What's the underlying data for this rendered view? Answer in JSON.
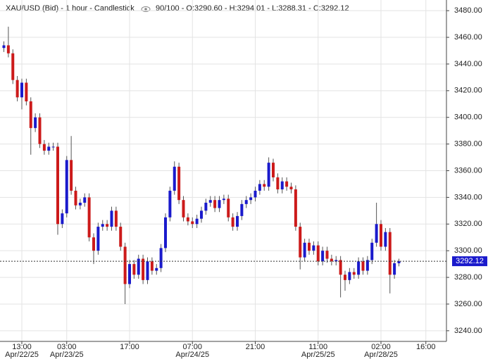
{
  "chart_data": {
    "type": "candlestick",
    "title": "XAU/USD (Bid) - 1 hour - Candlestick",
    "header_info": "90/100 - O:3290.60 - H:3294.01 - L:3288.31 - C:3292.12",
    "categories": [
      null,
      null,
      null,
      null,
      "13:00",
      null,
      null,
      null,
      null,
      null,
      null,
      null,
      null,
      null,
      "03:00",
      null,
      null,
      null,
      null,
      null,
      null,
      null,
      null,
      null,
      null,
      null,
      null,
      null,
      "17:00",
      null,
      null,
      null,
      null,
      null,
      null,
      null,
      null,
      null,
      null,
      null,
      null,
      null,
      "07:00",
      null,
      null,
      null,
      null,
      null,
      null,
      null,
      null,
      null,
      null,
      null,
      null,
      null,
      "21:00",
      null,
      null,
      null,
      null,
      null,
      null,
      null,
      null,
      null,
      null,
      null,
      null,
      null,
      "11:00",
      null,
      null,
      null,
      null,
      null,
      null,
      null,
      null,
      null,
      null,
      null,
      null,
      null,
      "02:00",
      null,
      null,
      null,
      null,
      null,
      null,
      null,
      null,
      null,
      "16:00"
    ],
    "dates": [
      null,
      null,
      null,
      null,
      "Apr/22/25",
      null,
      null,
      null,
      null,
      null,
      null,
      null,
      null,
      null,
      "Apr/23/25",
      null,
      null,
      null,
      null,
      null,
      null,
      null,
      null,
      null,
      null,
      null,
      null,
      null,
      null,
      null,
      null,
      null,
      null,
      null,
      null,
      null,
      null,
      null,
      null,
      null,
      null,
      null,
      "Apr/24/25",
      null,
      null,
      null,
      null,
      null,
      null,
      null,
      null,
      null,
      null,
      null,
      null,
      null,
      null,
      null,
      null,
      null,
      null,
      null,
      null,
      null,
      null,
      null,
      null,
      null,
      null,
      null,
      "Apr/25/25",
      null,
      null,
      null,
      null,
      null,
      null,
      null,
      null,
      null,
      null,
      null,
      null,
      null,
      "Apr/28/25",
      null,
      null,
      null,
      null,
      null,
      null,
      null,
      null,
      null,
      null
    ],
    "open": [
      3452,
      3454,
      3448,
      3428,
      3415,
      3426,
      3412,
      3392,
      3400,
      3380,
      3375,
      3378,
      3378,
      3320,
      3328,
      3368,
      3345,
      3334,
      3336,
      3340,
      3310,
      3300,
      3318,
      3320,
      3318,
      3330,
      3318,
      3303,
      3275,
      3290,
      3282,
      3294,
      3278,
      3292,
      3285,
      3287,
      3302,
      3325,
      3345,
      3363,
      3338,
      3325,
      3322,
      3320,
      3324,
      3330,
      3336,
      3338,
      3332,
      3338,
      3339,
      3325,
      3318,
      3326,
      3335,
      3338,
      3340,
      3345,
      3350,
      3348,
      3366,
      3355,
      3346,
      3352,
      3348,
      3346,
      3318,
      3295,
      3306,
      3300,
      3304,
      3292,
      3300,
      3294,
      3292,
      3293,
      3282,
      3278,
      3284,
      3282,
      3292,
      3285,
      3293,
      3306,
      3320,
      3303,
      3314,
      3282,
      3290.6,
      null,
      null,
      null,
      null,
      null,
      null
    ],
    "high": [
      3457,
      3468,
      3451,
      3431,
      3429,
      3429,
      3415,
      3403,
      3403,
      3383,
      3381,
      3381,
      3381,
      3331,
      3371,
      3386,
      3348,
      3339,
      3343,
      3343,
      3313,
      3321,
      3323,
      3323,
      3333,
      3333,
      3321,
      3306,
      3293,
      3293,
      3297,
      3297,
      3295,
      3295,
      3290,
      3305,
      3328,
      3348,
      3367,
      3366,
      3341,
      3328,
      3325,
      3327,
      3333,
      3339,
      3341,
      3341,
      3341,
      3342,
      3342,
      3328,
      3329,
      3338,
      3341,
      3343,
      3348,
      3353,
      3353,
      3370,
      3369,
      3358,
      3355,
      3355,
      3351,
      3349,
      3321,
      3309,
      3309,
      3307,
      3307,
      3303,
      3303,
      3297,
      3296,
      3296,
      3285,
      3287,
      3287,
      3295,
      3295,
      3296,
      3309,
      3336,
      3323,
      3317,
      3317,
      3293,
      3294.01,
      null,
      null,
      null,
      null,
      null,
      null
    ],
    "low": [
      3449,
      3445,
      3425,
      3412,
      3406,
      3409,
      3372,
      3389,
      3377,
      3372,
      3372,
      3375,
      3312,
      3317,
      3325,
      3342,
      3331,
      3331,
      3333,
      3307,
      3290,
      3297,
      3315,
      3315,
      3315,
      3315,
      3300,
      3260,
      3272,
      3279,
      3279,
      3275,
      3275,
      3282,
      3282,
      3284,
      3299,
      3322,
      3342,
      3335,
      3322,
      3319,
      3317,
      3317,
      3321,
      3327,
      3333,
      3329,
      3329,
      3335,
      3322,
      3315,
      3315,
      3323,
      3332,
      3335,
      3337,
      3342,
      3345,
      3345,
      3352,
      3343,
      3343,
      3345,
      3343,
      3315,
      3286,
      3292,
      3297,
      3297,
      3289,
      3289,
      3291,
      3289,
      3289,
      3265,
      3270,
      3275,
      3279,
      3279,
      3282,
      3282,
      3290,
      3303,
      3300,
      3300,
      3268,
      3279,
      3288.31,
      null,
      null,
      null,
      null,
      null,
      null
    ],
    "close": [
      3454,
      3448,
      3428,
      3415,
      3426,
      3412,
      3392,
      3400,
      3380,
      3375,
      3378,
      3378,
      3320,
      3328,
      3368,
      3345,
      3334,
      3336,
      3340,
      3310,
      3300,
      3318,
      3320,
      3318,
      3330,
      3318,
      3303,
      3275,
      3290,
      3282,
      3294,
      3278,
      3292,
      3285,
      3287,
      3302,
      3325,
      3345,
      3363,
      3338,
      3325,
      3322,
      3320,
      3324,
      3330,
      3336,
      3338,
      3332,
      3338,
      3339,
      3325,
      3318,
      3326,
      3335,
      3338,
      3340,
      3345,
      3350,
      3348,
      3366,
      3355,
      3346,
      3352,
      3348,
      3346,
      3318,
      3295,
      3306,
      3300,
      3304,
      3292,
      3300,
      3294,
      3292,
      3293,
      3282,
      3278,
      3284,
      3282,
      3292,
      3285,
      3293,
      3306,
      3320,
      3303,
      3314,
      3282,
      3290.6,
      3292.12,
      null,
      null,
      null,
      null,
      null,
      null
    ],
    "up_color": "#1a1acc",
    "down_color": "#cc1a1a",
    "last_price": 3292.12,
    "ylim": [
      3232,
      3488
    ],
    "yticks": [
      {
        "value": 3240,
        "label": "3240.00"
      },
      {
        "value": 3260,
        "label": "3260.00"
      },
      {
        "value": 3280,
        "label": "3280.00"
      },
      {
        "value": 3300,
        "label": "3300.00"
      },
      {
        "value": 3320,
        "label": "3320.00"
      },
      {
        "value": 3340,
        "label": "3340.00"
      },
      {
        "value": 3360,
        "label": "3360.00"
      },
      {
        "value": 3380,
        "label": "3380.00"
      },
      {
        "value": 3400,
        "label": "3400.00"
      },
      {
        "value": 3420,
        "label": "3420.00"
      },
      {
        "value": 3440,
        "label": "3440.00"
      },
      {
        "value": 3460,
        "label": "3460.00"
      },
      {
        "value": 3480,
        "label": "3480.00"
      }
    ],
    "grid": true
  }
}
